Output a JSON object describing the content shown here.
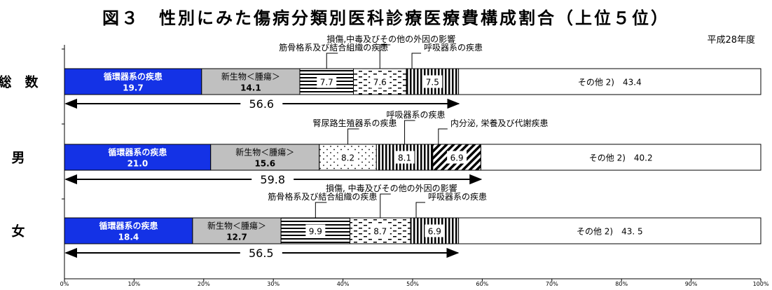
{
  "title": "図３　性別にみた傷病分類別医科診療医療費構成割合（上位５位）",
  "year": "平成28年度",
  "chart_data": {
    "type": "bar",
    "orientation": "horizontal",
    "stacked": true,
    "xlim": [
      0,
      100
    ],
    "x_ticks": [
      "0%",
      "10%",
      "20%",
      "30%",
      "40%",
      "50%",
      "60%",
      "70%",
      "80%",
      "90%",
      "100%"
    ],
    "grid": false,
    "rows": [
      {
        "label": "総　数",
        "segments": [
          {
            "pattern": "blue",
            "value": 19.7,
            "text1": "循環器系の疾患",
            "text2": "19.7"
          },
          {
            "pattern": "gray",
            "value": 14.1,
            "text1": "新生物＜腫瘍＞",
            "text2": "14.1"
          },
          {
            "pattern": "hlines",
            "value": 7.7,
            "text1": "7.7"
          },
          {
            "pattern": "dash",
            "value": 7.6,
            "text1": "7.6"
          },
          {
            "pattern": "vlines",
            "value": 7.5,
            "text1": "7.5"
          },
          {
            "pattern": "white",
            "value": 43.4,
            "text1": "その他 2)　43.4"
          }
        ],
        "callouts": [
          {
            "seg": 2,
            "text": "筋骨格系及び結合組織の疾患"
          },
          {
            "seg": 3,
            "text": "損傷,中毒及びその他の外因の影響"
          },
          {
            "seg": 4,
            "text": "呼吸器系の疾患"
          }
        ],
        "bracket_value": 56.6,
        "bracket_label": "56.6"
      },
      {
        "label": "男",
        "segments": [
          {
            "pattern": "blue",
            "value": 21.0,
            "text1": "循環器系の疾患",
            "text2": "21.0"
          },
          {
            "pattern": "gray",
            "value": 15.6,
            "text1": "新生物＜腫瘍＞",
            "text2": "15.6"
          },
          {
            "pattern": "dots",
            "value": 8.2,
            "text1": "8.2"
          },
          {
            "pattern": "vlines",
            "value": 8.1,
            "text1": "8.1"
          },
          {
            "pattern": "diag",
            "value": 6.9,
            "text1": "6.9"
          },
          {
            "pattern": "white",
            "value": 40.2,
            "text1": "その他 2)　40.2"
          }
        ],
        "callouts": [
          {
            "seg": 2,
            "text": "腎尿路生殖器系の疾患"
          },
          {
            "seg": 3,
            "text": "呼吸器系の疾患"
          },
          {
            "seg": 4,
            "text": "内分泌, 栄養及び代謝疾患"
          }
        ],
        "bracket_value": 59.8,
        "bracket_label": "59.8"
      },
      {
        "label": "女",
        "segments": [
          {
            "pattern": "blue",
            "value": 18.4,
            "text1": "循環器系の疾患",
            "text2": "18.4"
          },
          {
            "pattern": "gray",
            "value": 12.7,
            "text1": "新生物＜腫瘍＞",
            "text2": "12.7"
          },
          {
            "pattern": "hlines",
            "value": 9.9,
            "text1": "9.9"
          },
          {
            "pattern": "dash",
            "value": 8.7,
            "text1": "8.7"
          },
          {
            "pattern": "vlines",
            "value": 6.9,
            "text1": "6.9"
          },
          {
            "pattern": "white",
            "value": 43.5,
            "text1": "その他 2)　43. 5"
          }
        ],
        "callouts": [
          {
            "seg": 2,
            "text": "筋骨格系及び結合組織の疾患"
          },
          {
            "seg": 3,
            "text": "損傷, 中毒及びその他の外因の影響"
          },
          {
            "seg": 4,
            "text": "呼吸器系の疾患"
          }
        ],
        "bracket_value": 56.5,
        "bracket_label": "56.5"
      }
    ]
  }
}
